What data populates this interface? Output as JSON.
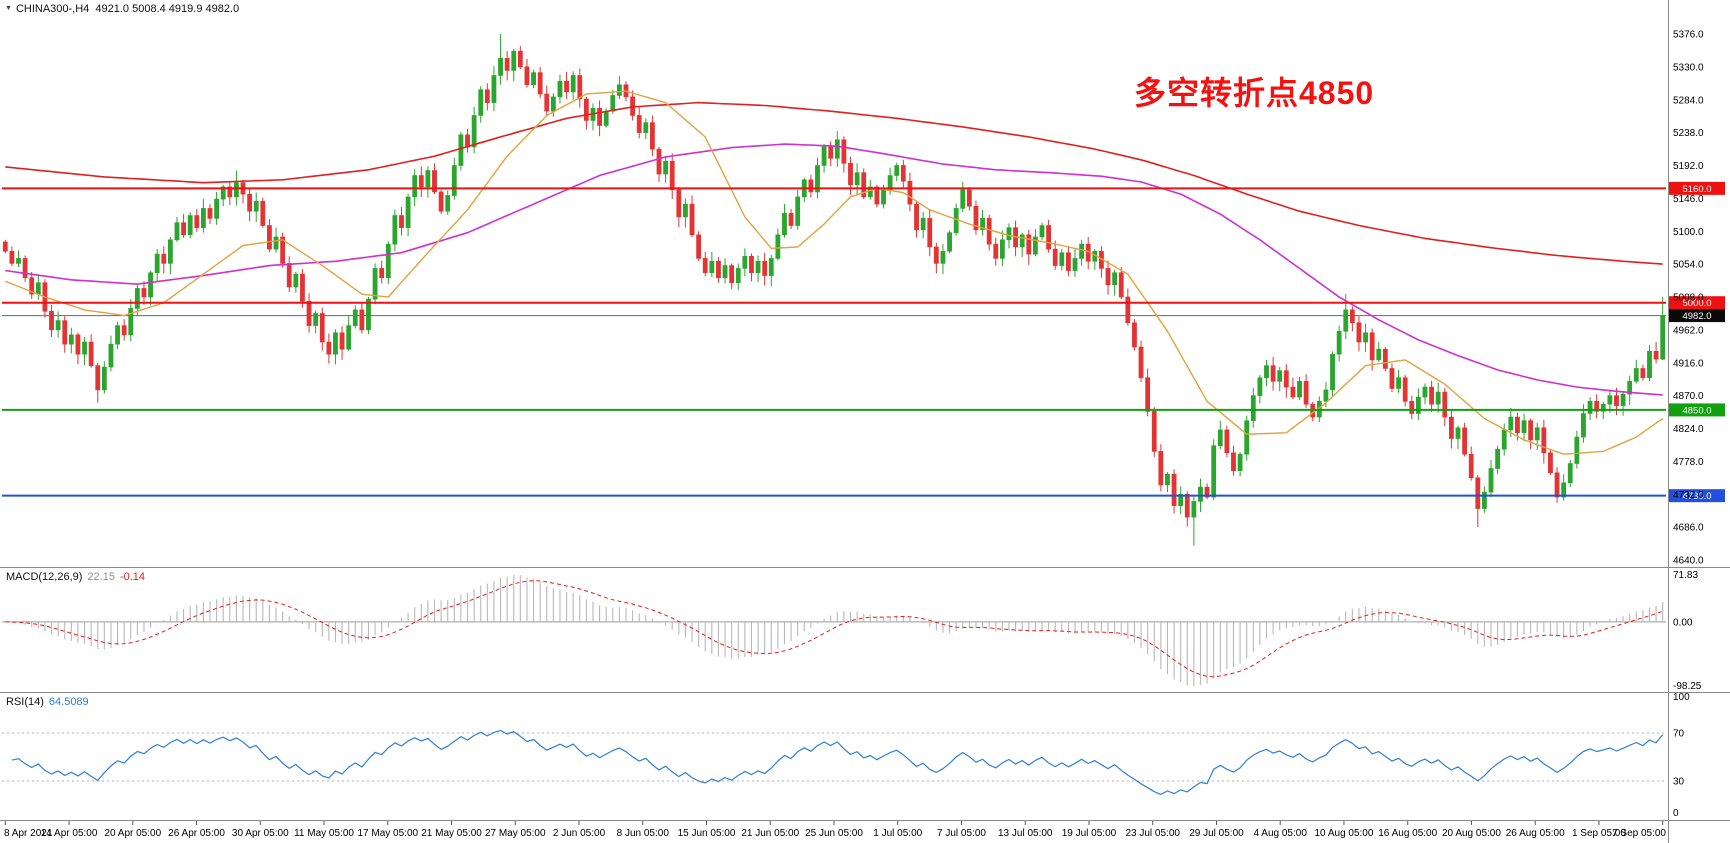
{
  "header": {
    "symbol_line": "CHINA300-,H4  4921.0 5008.4 4919.9 4982.0"
  },
  "annotation": {
    "text": "多空转折点4850",
    "color": "#f31212"
  },
  "indicators": {
    "macd": {
      "label": "MACD(12,26,9)",
      "value_main": "22.15",
      "value_signal": "-0.14",
      "axis": [
        "71.83",
        "0.00",
        "-98.25"
      ]
    },
    "rsi": {
      "label": "RSI(14)",
      "value": "64.5089",
      "axis": [
        "100",
        "70",
        "30",
        "0"
      ],
      "levels": [
        70,
        30
      ]
    }
  },
  "colors": {
    "candle_up": "#2aa52e",
    "candle_down": "#e23434",
    "macd_hist": "#b8b8b8",
    "macd_signal": "#e02020",
    "rsi_line": "#2f7ed8",
    "current_line": "#666666",
    "current_tag_bg": "#0a0a0a",
    "separator": "#8a8a8a",
    "axis_text": "#000000"
  },
  "chart_data": {
    "type": "candlestick",
    "symbol": "CHINA300-",
    "timeframe": "H4",
    "ohlc_current": {
      "open": 4921.0,
      "high": 5008.4,
      "low": 4919.9,
      "close": 4982.0
    },
    "price_range": [
      4640,
      5376
    ],
    "price_ticks": [
      "5376.0",
      "5330.0",
      "5284.0",
      "5238.0",
      "5192.0",
      "5146.0",
      "5100.0",
      "5054.0",
      "5008.0",
      "4962.0",
      "4916.0",
      "4870.0",
      "4824.0",
      "4778.0",
      "4732.0",
      "4686.0",
      "4640.0"
    ],
    "time_labels": [
      "8 Apr 2021",
      "14 Apr 05:00",
      "20 Apr 05:00",
      "26 Apr 05:00",
      "30 Apr 05:00",
      "11 May 05:00",
      "17 May 05:00",
      "21 May 05:00",
      "27 May 05:00",
      "2 Jun 05:00",
      "8 Jun 05:00",
      "15 Jun 05:00",
      "21 Jun 05:00",
      "25 Jun 05:00",
      "1 Jul 05:00",
      "7 Jul 05:00",
      "13 Jul 05:00",
      "19 Jul 05:00",
      "23 Jul 05:00",
      "29 Jul 05:00",
      "4 Aug 05:00",
      "10 Aug 05:00",
      "16 Aug 05:00",
      "20 Aug 05:00",
      "26 Aug 05:00",
      "1 Sep 05:00",
      "7 Sep 05:00"
    ],
    "hlines": [
      {
        "price": 5160,
        "tag": "5160.0",
        "color": "#ee1111",
        "width": 2
      },
      {
        "price": 5000,
        "tag": "5000.0",
        "color": "#ee1111",
        "width": 2
      },
      {
        "price": 4850,
        "tag": "4850.0",
        "color": "#10a010",
        "width": 2
      },
      {
        "price": 4730,
        "tag": "4730.0",
        "color": "#2050dd",
        "width": 2
      }
    ],
    "current_price": {
      "price": 4982,
      "tag": "4982.0"
    },
    "open_first": 5085,
    "closes": [
      5072,
      5055,
      5062,
      5035,
      5012,
      5028,
      4988,
      4962,
      4975,
      4942,
      4955,
      4928,
      4945,
      4912,
      4878,
      4910,
      4942,
      4968,
      4955,
      4992,
      5020,
      5008,
      5042,
      5068,
      5055,
      5088,
      5112,
      5095,
      5122,
      5105,
      5132,
      5118,
      5145,
      5162,
      5148,
      5168,
      5152,
      5128,
      5142,
      5108,
      5075,
      5092,
      5055,
      5022,
      5040,
      5002,
      4968,
      4985,
      4945,
      4928,
      4958,
      4935,
      4968,
      4990,
      4962,
      5005,
      5048,
      5035,
      5082,
      5122,
      5105,
      5148,
      5178,
      5162,
      5185,
      5155,
      5128,
      5150,
      5192,
      5235,
      5218,
      5262,
      5298,
      5280,
      5318,
      5342,
      5325,
      5352,
      5330,
      5305,
      5322,
      5292,
      5268,
      5288,
      5310,
      5295,
      5318,
      5285,
      5255,
      5272,
      5248,
      5268,
      5290,
      5305,
      5288,
      5262,
      5238,
      5252,
      5215,
      5180,
      5198,
      5158,
      5120,
      5138,
      5095,
      5062,
      5042,
      5058,
      5035,
      5052,
      5028,
      5048,
      5065,
      5042,
      5058,
      5038,
      5062,
      5095,
      5125,
      5108,
      5148,
      5172,
      5155,
      5192,
      5218,
      5202,
      5228,
      5195,
      5165,
      5182,
      5148,
      5162,
      5138,
      5158,
      5178,
      5192,
      5170,
      5138,
      5102,
      5118,
      5078,
      5055,
      5072,
      5098,
      5132,
      5158,
      5135,
      5102,
      5118,
      5082,
      5062,
      5088,
      5105,
      5078,
      5095,
      5068,
      5092,
      5108,
      5075,
      5052,
      5070,
      5045,
      5062,
      5082,
      5058,
      5072,
      5048,
      5025,
      5042,
      5008,
      4972,
      4938,
      4895,
      4848,
      4792,
      4745,
      4760,
      4716,
      4732,
      4700,
      4722,
      4742,
      4728,
      4800,
      4822,
      4790,
      4765,
      4788,
      4835,
      4870,
      4895,
      4912,
      4890,
      4905,
      4882,
      4868,
      4890,
      4858,
      4840,
      4862,
      4878,
      4928,
      4960,
      4990,
      4972,
      4945,
      4958,
      4920,
      4935,
      4908,
      4880,
      4895,
      4862,
      4845,
      4868,
      4882,
      4858,
      4875,
      4840,
      4810,
      4825,
      4788,
      4755,
      4712,
      4735,
      4768,
      4795,
      4822,
      4840,
      4818,
      4835,
      4808,
      4825,
      4790,
      4762,
      4728,
      4748,
      4775,
      4812,
      4845,
      4862,
      4848,
      4858,
      4870,
      4856,
      4872,
      4890,
      4908,
      4895,
      4932,
      4921,
      4982
    ],
    "overrides": [
      {
        "i": 14,
        "low": 4860
      },
      {
        "i": 35,
        "high": 5185
      },
      {
        "i": 75,
        "high": 5376
      },
      {
        "i": 180,
        "low": 4660
      },
      {
        "i": 203,
        "high": 5012
      },
      {
        "i": 223,
        "low": 4686
      },
      {
        "i": 235,
        "low": 4720
      },
      {
        "i": 251,
        "open": 4921.0,
        "high": 5008.4,
        "low": 4919.9,
        "close": 4982.0
      }
    ],
    "mas": [
      {
        "name": "slow-red",
        "color": "#e02020",
        "width": 1.6,
        "points": [
          [
            0,
            5190
          ],
          [
            15,
            5176
          ],
          [
            30,
            5168
          ],
          [
            42,
            5172
          ],
          [
            55,
            5186
          ],
          [
            65,
            5205
          ],
          [
            75,
            5232
          ],
          [
            85,
            5258
          ],
          [
            95,
            5274
          ],
          [
            105,
            5280
          ],
          [
            115,
            5276
          ],
          [
            125,
            5268
          ],
          [
            135,
            5258
          ],
          [
            145,
            5246
          ],
          [
            155,
            5232
          ],
          [
            165,
            5215
          ],
          [
            172,
            5200
          ],
          [
            180,
            5178
          ],
          [
            188,
            5152
          ],
          [
            196,
            5128
          ],
          [
            205,
            5108
          ],
          [
            215,
            5090
          ],
          [
            225,
            5077
          ],
          [
            235,
            5066
          ],
          [
            245,
            5058
          ],
          [
            251,
            5054
          ]
        ]
      },
      {
        "name": "medium-magenta",
        "color": "#cf30cf",
        "width": 1.6,
        "points": [
          [
            0,
            5045
          ],
          [
            10,
            5032
          ],
          [
            20,
            5026
          ],
          [
            30,
            5038
          ],
          [
            40,
            5052
          ],
          [
            50,
            5058
          ],
          [
            60,
            5070
          ],
          [
            70,
            5098
          ],
          [
            80,
            5138
          ],
          [
            90,
            5178
          ],
          [
            100,
            5204
          ],
          [
            110,
            5217
          ],
          [
            118,
            5222
          ],
          [
            126,
            5219
          ],
          [
            134,
            5207
          ],
          [
            142,
            5194
          ],
          [
            150,
            5186
          ],
          [
            158,
            5182
          ],
          [
            166,
            5177
          ],
          [
            172,
            5169
          ],
          [
            178,
            5152
          ],
          [
            184,
            5124
          ],
          [
            190,
            5088
          ],
          [
            196,
            5048
          ],
          [
            202,
            5008
          ],
          [
            208,
            4976
          ],
          [
            214,
            4948
          ],
          [
            220,
            4926
          ],
          [
            226,
            4906
          ],
          [
            232,
            4892
          ],
          [
            238,
            4882
          ],
          [
            244,
            4876
          ],
          [
            251,
            4871
          ]
        ]
      },
      {
        "name": "fast-orange",
        "color": "#e2a23e",
        "width": 1.4,
        "points": [
          [
            0,
            5030
          ],
          [
            6,
            5008
          ],
          [
            12,
            4990
          ],
          [
            18,
            4982
          ],
          [
            24,
            5000
          ],
          [
            30,
            5040
          ],
          [
            36,
            5080
          ],
          [
            42,
            5088
          ],
          [
            48,
            5052
          ],
          [
            54,
            5012
          ],
          [
            58,
            5008
          ],
          [
            64,
            5070
          ],
          [
            70,
            5130
          ],
          [
            76,
            5205
          ],
          [
            82,
            5262
          ],
          [
            88,
            5292
          ],
          [
            94,
            5296
          ],
          [
            100,
            5280
          ],
          [
            106,
            5232
          ],
          [
            112,
            5120
          ],
          [
            116,
            5076
          ],
          [
            120,
            5078
          ],
          [
            124,
            5110
          ],
          [
            128,
            5148
          ],
          [
            132,
            5160
          ],
          [
            136,
            5154
          ],
          [
            140,
            5130
          ],
          [
            146,
            5110
          ],
          [
            152,
            5094
          ],
          [
            158,
            5084
          ],
          [
            164,
            5072
          ],
          [
            170,
            5040
          ],
          [
            176,
            4960
          ],
          [
            182,
            4862
          ],
          [
            188,
            4816
          ],
          [
            194,
            4818
          ],
          [
            200,
            4860
          ],
          [
            206,
            4912
          ],
          [
            212,
            4920
          ],
          [
            218,
            4886
          ],
          [
            224,
            4838
          ],
          [
            230,
            4808
          ],
          [
            236,
            4788
          ],
          [
            242,
            4792
          ],
          [
            247,
            4812
          ],
          [
            251,
            4838
          ]
        ]
      }
    ],
    "macd_axis": {
      "max": 71.83,
      "min": -98.25
    },
    "rsi_axis": {
      "max": 100,
      "min": 0,
      "levels": [
        70,
        30
      ]
    }
  }
}
